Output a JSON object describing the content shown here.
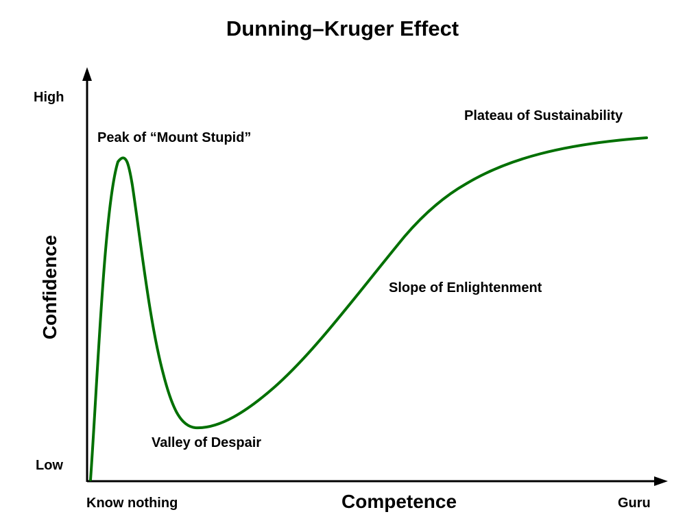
{
  "title": "Dunning–Kruger Effect",
  "axes": {
    "x_label": "Competence",
    "y_label": "Confidence",
    "x_start_label": "Know nothing",
    "x_end_label": "Guru",
    "y_high_label": "High",
    "y_low_label": "Low"
  },
  "stages": {
    "peak": "Peak of “Mount Stupid”",
    "valley": "Valley of Despair",
    "slope": "Slope of Enlightenment",
    "plateau": "Plateau of Sustainability"
  },
  "colors": {
    "curve": "#007000",
    "axis": "#000000"
  }
}
